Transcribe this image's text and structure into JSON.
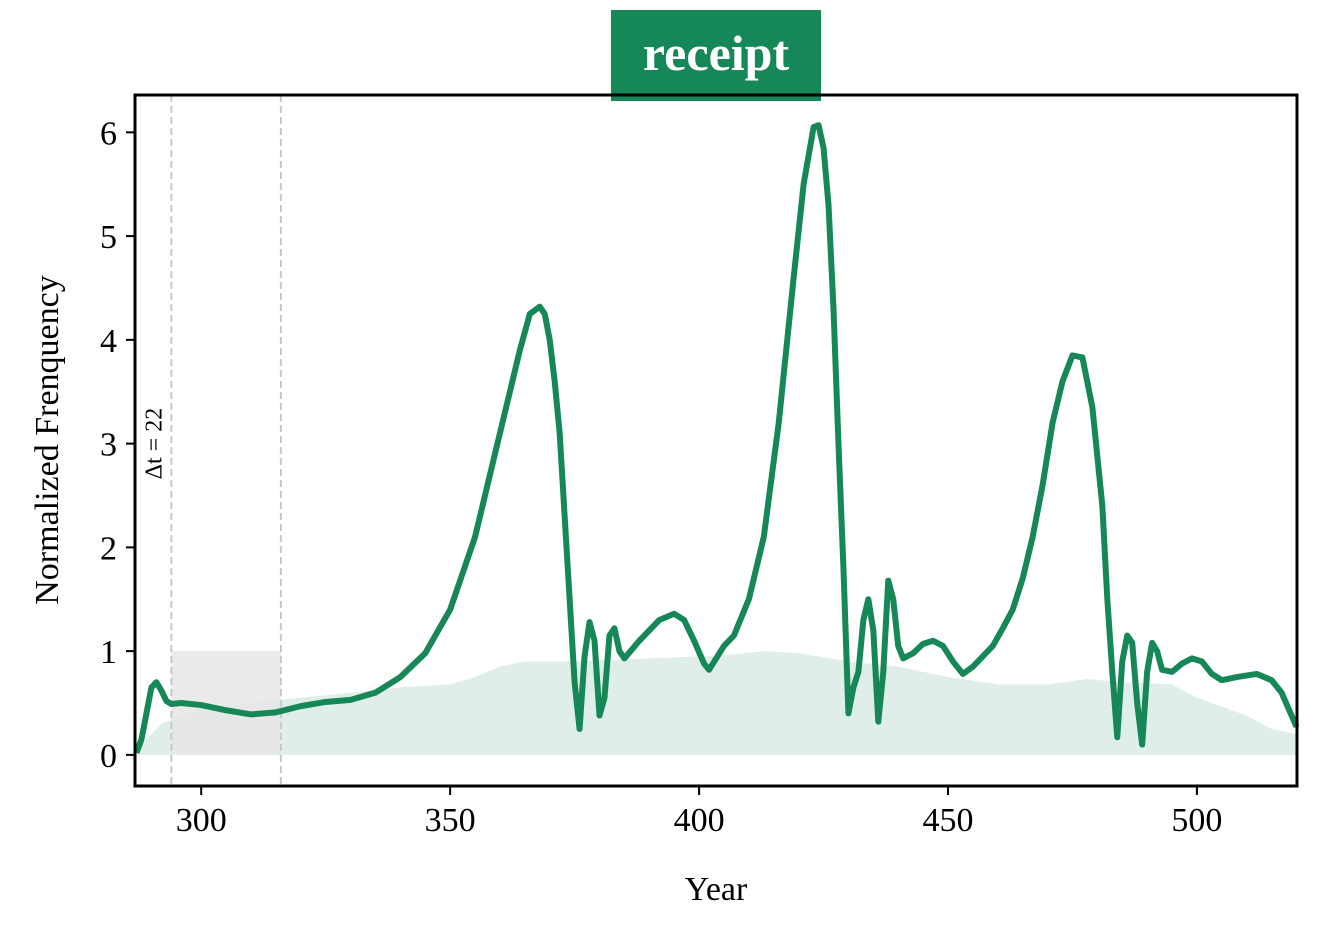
{
  "chart_data": {
    "type": "line",
    "title": "receipt",
    "xlabel": "Year",
    "ylabel": "Normalized Frenquency",
    "xlim": [
      286.7,
      520.1
    ],
    "ylim": [
      -0.3,
      6.36
    ],
    "xticks": [
      300,
      350,
      400,
      450,
      500
    ],
    "yticks": [
      0,
      1,
      2,
      3,
      4,
      5,
      6
    ],
    "window": {
      "x": [
        294,
        316
      ],
      "y": [
        0,
        1
      ],
      "label": "Δt = 22",
      "color": "#e6e6e6"
    },
    "series": [
      {
        "name": "receipt",
        "color": "#168757",
        "x": [
          287,
          288,
          289,
          290,
          291,
          292,
          293,
          294,
          296,
          300,
          305,
          310,
          315,
          320,
          325,
          330,
          335,
          340,
          345,
          350,
          355,
          360,
          364,
          366,
          368,
          369,
          370,
          371,
          372,
          373,
          374,
          375,
          376,
          377,
          378,
          379,
          380,
          381,
          382,
          383,
          384,
          385,
          388,
          392,
          395,
          397,
          399,
          401,
          402,
          405,
          407,
          410,
          413,
          416,
          419,
          421,
          423,
          424,
          425,
          426,
          427,
          428,
          429,
          430,
          431,
          432,
          433,
          434,
          435,
          436,
          437,
          438,
          439,
          440,
          441,
          443,
          445,
          447,
          449,
          451,
          453,
          455,
          457,
          459,
          461,
          463,
          465,
          467,
          469,
          471,
          473,
          475,
          477,
          479,
          481,
          482,
          483,
          484,
          485,
          486,
          487,
          488,
          489,
          490,
          491,
          492,
          493,
          495,
          497,
          499,
          501,
          503,
          505,
          508,
          512,
          515,
          517,
          519,
          520
        ],
        "values": [
          0.02,
          0.15,
          0.4,
          0.65,
          0.7,
          0.62,
          0.52,
          0.49,
          0.5,
          0.48,
          0.43,
          0.39,
          0.41,
          0.47,
          0.51,
          0.53,
          0.6,
          0.75,
          0.98,
          1.4,
          2.1,
          3.1,
          3.9,
          4.25,
          4.32,
          4.25,
          4.0,
          3.6,
          3.1,
          2.3,
          1.5,
          0.7,
          0.25,
          0.95,
          1.28,
          1.1,
          0.38,
          0.55,
          1.15,
          1.22,
          1.0,
          0.93,
          1.1,
          1.3,
          1.36,
          1.3,
          1.1,
          0.88,
          0.82,
          1.05,
          1.15,
          1.5,
          2.1,
          3.2,
          4.6,
          5.5,
          6.05,
          6.07,
          5.85,
          5.3,
          4.3,
          3.0,
          1.8,
          0.4,
          0.65,
          0.8,
          1.3,
          1.5,
          1.2,
          0.32,
          0.8,
          1.68,
          1.5,
          1.05,
          0.93,
          0.98,
          1.07,
          1.1,
          1.05,
          0.9,
          0.78,
          0.85,
          0.95,
          1.05,
          1.22,
          1.4,
          1.7,
          2.1,
          2.6,
          3.2,
          3.6,
          3.85,
          3.83,
          3.35,
          2.4,
          1.5,
          0.8,
          0.17,
          0.9,
          1.15,
          1.08,
          0.5,
          0.1,
          0.8,
          1.08,
          1.0,
          0.82,
          0.8,
          0.88,
          0.93,
          0.9,
          0.78,
          0.72,
          0.75,
          0.78,
          0.72,
          0.6,
          0.38,
          0.27
        ]
      },
      {
        "type": "area",
        "color": "#dfeee8",
        "x": [
          287,
          292,
          300,
          310,
          320,
          330,
          340,
          350,
          355,
          360,
          365,
          375,
          385,
          395,
          405,
          413,
          420,
          430,
          440,
          450,
          460,
          470,
          478,
          485,
          495,
          500,
          510,
          515,
          520
        ],
        "values": [
          0.05,
          0.3,
          0.45,
          0.5,
          0.55,
          0.6,
          0.65,
          0.68,
          0.75,
          0.85,
          0.9,
          0.9,
          0.92,
          0.94,
          0.96,
          1.0,
          0.98,
          0.9,
          0.85,
          0.75,
          0.68,
          0.68,
          0.73,
          0.7,
          0.68,
          0.55,
          0.38,
          0.25,
          0.2
        ]
      }
    ]
  }
}
